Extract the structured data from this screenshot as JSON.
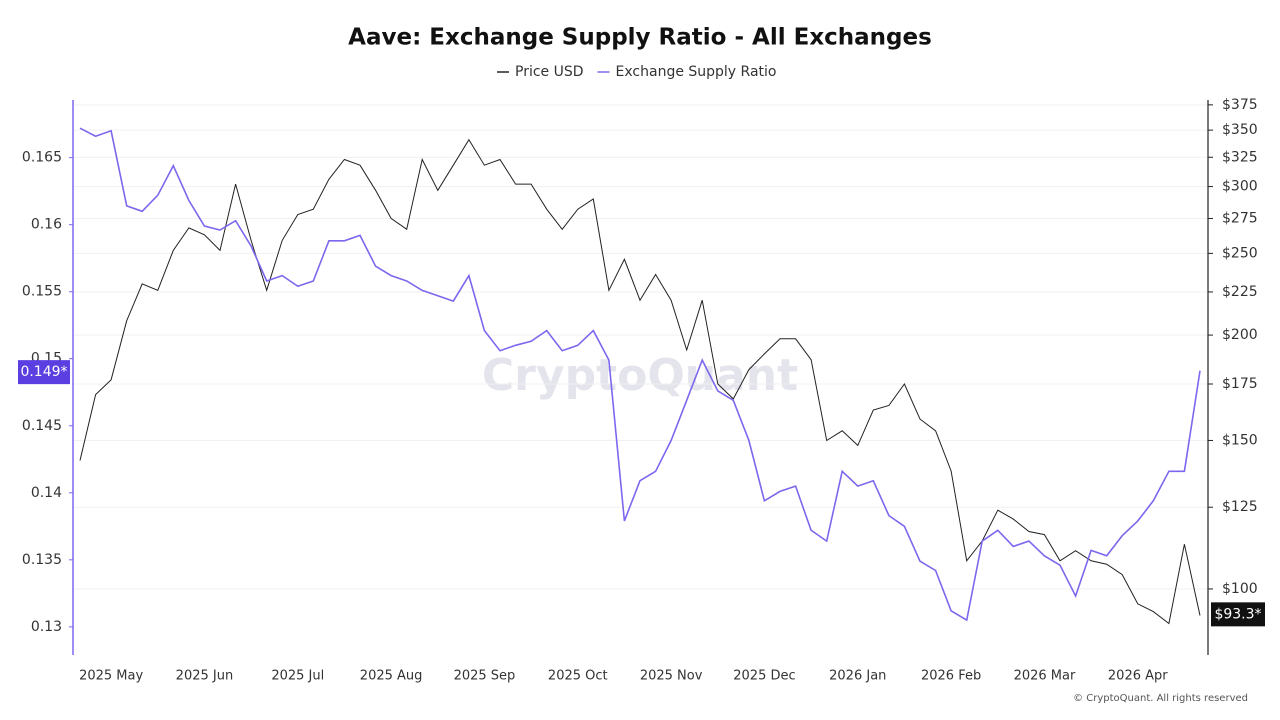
{
  "chart_data": {
    "type": "line",
    "title": "Aave: Exchange Supply Ratio - All Exchanges",
    "watermark": "CryptoQuant",
    "footer": "© CryptoQuant. All rights reserved",
    "categories": [
      null,
      null,
      "2025 May",
      null,
      null,
      null,
      null,
      null,
      "2025 Jun",
      null,
      null,
      null,
      null,
      null,
      "2025 Jul",
      null,
      null,
      null,
      null,
      null,
      "2025 Aug",
      null,
      null,
      null,
      null,
      null,
      "2025 Sep",
      null,
      null,
      null,
      null,
      null,
      "2025 Oct",
      null,
      null,
      null,
      null,
      null,
      "2025 Nov",
      null,
      null,
      null,
      null,
      null,
      "2025 Dec",
      null,
      null,
      null,
      null,
      null,
      "2026 Jan",
      null,
      null,
      null,
      null,
      null,
      "2026 Feb",
      null,
      null,
      null,
      null,
      null,
      "2026 Mar",
      null,
      null,
      null,
      null,
      null,
      "2026 Apr",
      null,
      null,
      null,
      null
    ],
    "series": [
      {
        "name": "Price USD",
        "color": "#222222",
        "axis": "y2",
        "values": [
          142,
          170,
          177,
          208,
          230,
          226,
          252,
          268,
          263,
          252,
          302,
          259,
          226,
          259,
          278,
          282,
          306,
          323,
          318,
          297,
          275,
          267,
          323,
          297,
          318,
          341,
          318,
          323,
          302,
          302,
          282,
          267,
          282,
          290,
          226,
          246,
          220,
          236,
          220,
          192,
          220,
          175,
          168,
          182,
          190,
          198,
          198,
          187,
          150,
          154,
          148,
          163,
          165,
          175,
          159,
          154,
          138,
          108,
          114,
          124,
          121,
          117,
          116,
          108,
          111,
          108,
          107,
          104,
          96,
          94,
          91,
          113,
          93
        ]
      },
      {
        "name": "Exchange Supply Ratio",
        "color": "#7b68ee",
        "values": [
          0.1672,
          0.1666,
          0.167,
          0.1614,
          0.161,
          0.1622,
          0.1644,
          0.1618,
          0.1599,
          0.1596,
          0.1603,
          0.1584,
          0.1558,
          0.1562,
          0.1554,
          0.1558,
          0.1588,
          0.1588,
          0.1592,
          0.1569,
          0.1562,
          0.1558,
          0.1551,
          0.1547,
          0.1543,
          0.1562,
          0.1521,
          0.1506,
          0.151,
          0.1513,
          0.1521,
          0.1506,
          0.151,
          0.1521,
          0.1499,
          0.1379,
          0.1409,
          0.1416,
          0.1439,
          0.1469,
          0.1499,
          0.1476,
          0.1469,
          0.1439,
          0.1394,
          0.1401,
          0.1405,
          0.1372,
          0.1364,
          0.1416,
          0.1405,
          0.1409,
          0.1383,
          0.1375,
          0.1349,
          0.1342,
          0.1312,
          0.1305,
          0.1364,
          0.1372,
          0.136,
          0.1364,
          0.1353,
          0.1346,
          0.1323,
          0.1357,
          0.1353,
          0.1368,
          0.1379,
          0.1394,
          0.1416,
          0.1416,
          0.1491
        ]
      }
    ],
    "ylim": [
      0.1279,
      0.1693
    ],
    "yticks": [
      0.13,
      0.135,
      0.14,
      0.145,
      0.15,
      0.155,
      0.16,
      0.165
    ],
    "y2lim": [
      83.5,
      380
    ],
    "y2log": true,
    "y2ticks": [
      {
        "value": 100,
        "label": "$100"
      },
      {
        "value": 125,
        "label": "$125"
      },
      {
        "value": 150,
        "label": "$150"
      },
      {
        "value": 175,
        "label": "$175"
      },
      {
        "value": 200,
        "label": "$200"
      },
      {
        "value": 225,
        "label": "$225"
      },
      {
        "value": 250,
        "label": "$250"
      },
      {
        "value": 275,
        "label": "$275"
      },
      {
        "value": 300,
        "label": "$300"
      },
      {
        "value": 325,
        "label": "$325"
      },
      {
        "value": 350,
        "label": "$350"
      },
      {
        "value": 375,
        "label": "$375"
      }
    ],
    "grid": true,
    "annotations": [
      {
        "text": "0.149*",
        "value": 0.149,
        "axis": "y",
        "color": "#5b3fe0"
      },
      {
        "text": "$93.3*",
        "value": 93.3,
        "axis": "y2",
        "color": "#111111"
      }
    ]
  }
}
